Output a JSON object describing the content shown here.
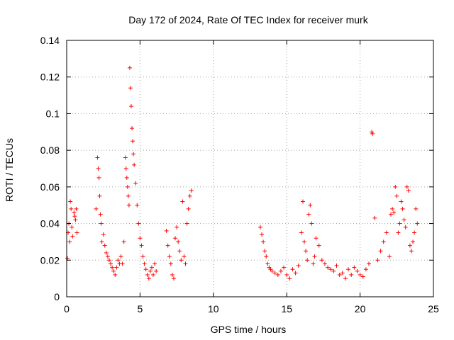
{
  "chart_data": {
    "type": "scatter",
    "title": "Day 172 of 2024, Rate Of TEC Index for receiver murk",
    "xlabel": "GPS time / hours",
    "ylabel": "ROTI / TECUs",
    "xlim": [
      0,
      25
    ],
    "ylim": [
      0,
      0.14
    ],
    "x_ticks": [
      "0",
      "5",
      "10",
      "15",
      "20",
      "25"
    ],
    "y_ticks": [
      "0",
      "0.02",
      "0.04",
      "0.06",
      "0.08",
      "0.1",
      "0.12",
      "0.14"
    ],
    "grid": true,
    "marker": "plus",
    "color": "#ff0000",
    "series": [
      {
        "x": [
          0.05,
          0.1,
          0.15,
          0.2,
          0.25,
          0.3,
          0.35,
          0.4,
          0.5,
          0.55,
          0.6,
          0.65,
          0.7,
          2.0,
          2.1,
          2.15,
          2.2,
          2.25,
          2.3,
          2.35,
          2.4,
          2.5,
          2.6,
          2.7,
          2.8,
          2.9,
          3.0,
          3.1,
          3.2,
          3.3,
          3.4,
          3.5,
          3.6,
          3.7,
          3.8,
          3.9,
          4.0,
          4.05,
          4.1,
          4.15,
          4.2,
          4.25,
          4.3,
          4.35,
          4.4,
          4.45,
          4.5,
          4.55,
          4.6,
          4.7,
          4.8,
          4.9,
          5.0,
          5.1,
          5.2,
          5.3,
          5.4,
          5.5,
          5.6,
          5.7,
          5.8,
          5.9,
          6.0,
          6.1,
          6.8,
          6.9,
          7.0,
          7.1,
          7.2,
          7.3,
          7.4,
          7.5,
          7.6,
          7.7,
          7.8,
          7.9,
          8.0,
          8.1,
          8.2,
          8.3,
          8.4,
          8.5,
          13.2,
          13.3,
          13.4,
          13.5,
          13.6,
          13.7,
          13.8,
          13.9,
          14.0,
          14.2,
          14.4,
          14.6,
          14.8,
          15.0,
          15.2,
          15.4,
          15.6,
          15.8,
          16.0,
          16.1,
          16.2,
          16.3,
          16.4,
          16.5,
          16.6,
          16.7,
          16.8,
          16.9,
          17.0,
          17.2,
          17.4,
          17.6,
          17.8,
          18.0,
          18.2,
          18.4,
          18.6,
          18.8,
          19.0,
          19.2,
          19.4,
          19.6,
          19.8,
          20.0,
          20.2,
          20.4,
          20.6,
          20.8,
          20.85,
          21.0,
          21.2,
          21.4,
          21.6,
          21.8,
          22.0,
          22.1,
          22.2,
          22.3,
          22.4,
          22.5,
          22.6,
          22.7,
          22.8,
          22.9,
          23.0,
          23.1,
          23.2,
          23.3,
          23.4,
          23.5,
          23.6,
          23.7,
          23.8,
          23.9
        ],
        "y": [
          0.021,
          0.035,
          0.04,
          0.03,
          0.052,
          0.048,
          0.038,
          0.033,
          0.046,
          0.044,
          0.042,
          0.048,
          0.035,
          0.048,
          0.076,
          0.07,
          0.065,
          0.055,
          0.045,
          0.04,
          0.03,
          0.034,
          0.028,
          0.024,
          0.022,
          0.02,
          0.018,
          0.016,
          0.014,
          0.012,
          0.016,
          0.02,
          0.018,
          0.022,
          0.018,
          0.03,
          0.076,
          0.07,
          0.065,
          0.06,
          0.055,
          0.05,
          0.125,
          0.114,
          0.104,
          0.092,
          0.085,
          0.078,
          0.072,
          0.062,
          0.05,
          0.04,
          0.032,
          0.028,
          0.022,
          0.018,
          0.015,
          0.012,
          0.01,
          0.014,
          0.016,
          0.012,
          0.018,
          0.014,
          0.036,
          0.028,
          0.022,
          0.018,
          0.012,
          0.01,
          0.032,
          0.038,
          0.03,
          0.025,
          0.02,
          0.052,
          0.022,
          0.018,
          0.04,
          0.048,
          0.055,
          0.058,
          0.038,
          0.034,
          0.03,
          0.025,
          0.022,
          0.018,
          0.016,
          0.015,
          0.014,
          0.013,
          0.012,
          0.014,
          0.016,
          0.012,
          0.01,
          0.015,
          0.013,
          0.017,
          0.035,
          0.052,
          0.03,
          0.025,
          0.02,
          0.045,
          0.05,
          0.04,
          0.018,
          0.022,
          0.032,
          0.028,
          0.02,
          0.018,
          0.016,
          0.015,
          0.014,
          0.017,
          0.012,
          0.013,
          0.01,
          0.015,
          0.012,
          0.016,
          0.014,
          0.012,
          0.011,
          0.015,
          0.018,
          0.09,
          0.089,
          0.043,
          0.02,
          0.025,
          0.03,
          0.035,
          0.022,
          0.045,
          0.048,
          0.046,
          0.06,
          0.055,
          0.035,
          0.04,
          0.052,
          0.048,
          0.042,
          0.038,
          0.06,
          0.058,
          0.028,
          0.025,
          0.03,
          0.035,
          0.048,
          0.04
        ]
      }
    ]
  }
}
